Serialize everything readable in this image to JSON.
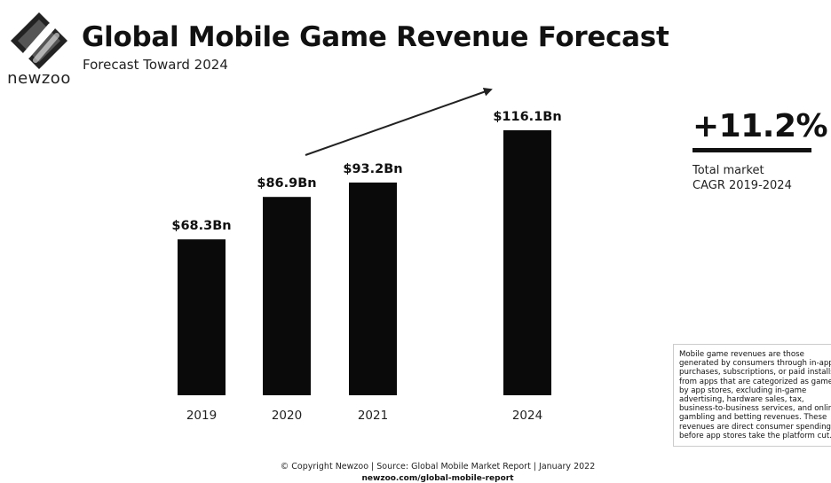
{
  "brand": {
    "logo_text": "newzoo",
    "logo_icon": "newzoo-diamond-logo-icon"
  },
  "header": {
    "title": "Global Mobile Game Revenue Forecast",
    "subtitle": "Forecast Toward 2024"
  },
  "chart_data": {
    "type": "bar",
    "title": "Global Mobile Game Revenue Forecast",
    "subtitle": "Forecast Toward 2024",
    "categories": [
      "2019",
      "2020",
      "2021",
      "2024"
    ],
    "values": [
      68.3,
      86.9,
      93.2,
      116.1
    ],
    "data_labels": [
      "$68.3Bn",
      "$86.9Bn",
      "$93.2Bn",
      "$116.1Bn"
    ],
    "xlabel": "",
    "ylabel": "",
    "ylim": [
      0,
      116.1
    ],
    "grid": false,
    "legend": "none",
    "bar_color": "#0a0a0a",
    "trend_arrow": true
  },
  "cagr": {
    "value": "+11.2%",
    "label_line1": "Total market",
    "label_line2": "CAGR 2019-2024"
  },
  "note": {
    "text": "Mobile game revenues are those\ngenerated by consumers through in-app\npurchases, subscriptions, or paid installs\nfrom apps that are categorized as games\nby app stores, excluding in-game\nadvertising, hardware sales, tax,\nbusiness-to-business services, and online\ngambling and betting revenues. These\nrevenues are direct consumer spending,\nbefore app stores take the platform cut."
  },
  "footer": {
    "copyright": "© Copyright Newzoo | Source: Global Mobile Market Report | January 2022",
    "url": "newzoo.com/global-mobile-report"
  },
  "colors": {
    "bars": "#0a0a0a",
    "text": "#111111",
    "background": "#ffffff"
  }
}
